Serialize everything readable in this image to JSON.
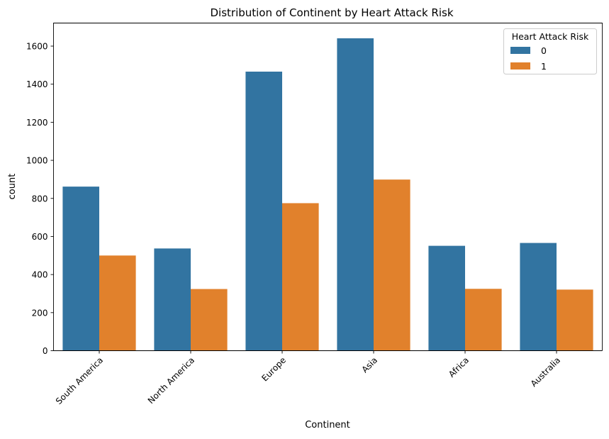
{
  "chart_data": {
    "type": "bar",
    "title": "Distribution of Continent by Heart Attack Risk",
    "xlabel": "Continent",
    "ylabel": "count",
    "categories": [
      "South America",
      "North America",
      "Europe",
      "Asia",
      "Africa",
      "Australia"
    ],
    "series": [
      {
        "name": "0",
        "color": "#3274a1",
        "values": [
          862,
          537,
          1466,
          1641,
          551,
          566
        ]
      },
      {
        "name": "1",
        "color": "#e1812c",
        "values": [
          500,
          324,
          775,
          899,
          325,
          321
        ]
      }
    ],
    "ylim": [
      0,
      1723
    ],
    "yticks": [
      0,
      200,
      400,
      600,
      800,
      1000,
      1200,
      1400,
      1600
    ],
    "grid": false,
    "legend": {
      "title": "Heart Attack Risk",
      "placement": "top-right"
    }
  }
}
